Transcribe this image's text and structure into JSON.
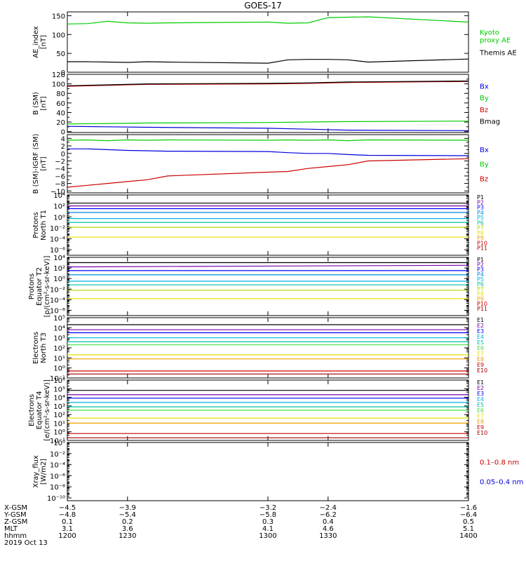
{
  "title": "GOES-17",
  "colors": {
    "black": "#000000",
    "green": "#00cc00",
    "blue": "#0000dd",
    "red": "#cc0000",
    "purple": "#7700aa",
    "darkblue": "#0000ff",
    "cyan": "#00b0e0",
    "teal": "#00c0a0",
    "lightgreen": "#40e040",
    "yellowgreen": "#b0d800",
    "yellow": "#e8e000",
    "orange": "#f0a000",
    "darkred": "#a00000"
  },
  "chart_data": [
    {
      "type": "line",
      "ylabel": "AE_index\n[nT]",
      "ylim": [
        0,
        160
      ],
      "yticks": [
        "0",
        "50",
        "100",
        "150"
      ],
      "ytick_values": [
        0,
        50,
        100,
        150
      ],
      "scale": "linear",
      "x": [
        1200,
        1210,
        1220,
        1230,
        1240,
        1250,
        1300,
        1310,
        1320,
        1330,
        1340,
        1350,
        1400
      ],
      "series": [
        {
          "name": "Kyoto\nproxy AE",
          "color": "#00cc00",
          "values": [
            128,
            129,
            135,
            131,
            130,
            131,
            133,
            130,
            131,
            145,
            146,
            147,
            133
          ]
        },
        {
          "name": "Themis AE",
          "color": "#000000",
          "values": [
            28,
            28,
            27,
            26,
            28,
            27,
            24,
            33,
            34,
            34,
            33,
            27,
            35
          ]
        }
      ]
    },
    {
      "type": "line",
      "ylabel": "B (SM)\n[nT]",
      "ylim": [
        -2,
        120
      ],
      "yticks": [
        "0",
        "20",
        "40",
        "60",
        "80",
        "100",
        "120"
      ],
      "ytick_values": [
        0,
        20,
        40,
        60,
        80,
        100,
        120
      ],
      "minor_yticks": [
        10,
        30,
        50,
        70,
        90,
        110
      ],
      "scale": "linear",
      "x": [
        1200,
        1220,
        1240,
        1300,
        1320,
        1340,
        1400
      ],
      "series": [
        {
          "name": "Bx",
          "color": "#0000dd",
          "values": [
            11,
            10,
            9,
            7,
            5,
            3,
            2
          ]
        },
        {
          "name": "By",
          "color": "#00cc00",
          "values": [
            16,
            17,
            18,
            19,
            20,
            21,
            22
          ]
        },
        {
          "name": "Bz",
          "color": "#cc0000",
          "values": [
            95,
            97,
            99,
            100,
            101,
            103,
            105
          ]
        },
        {
          "name": "Bmag",
          "color": "#000000",
          "values": [
            96,
            98,
            100,
            101,
            102,
            104,
            106
          ]
        }
      ]
    },
    {
      "type": "line",
      "ylabel": "B (SM)-IGRF (SM)\n[nT]",
      "ylim": [
        -10.5,
        5
      ],
      "yticks": [
        "4",
        "2",
        "0",
        "−2",
        "−4",
        "−6",
        "−8",
        "−10"
      ],
      "ytick_values": [
        4,
        2,
        0,
        -2,
        -4,
        -6,
        -8,
        -10
      ],
      "minor_yticks": [
        3,
        1,
        -1,
        -3,
        -5,
        -7,
        -9
      ],
      "scale": "linear",
      "x": [
        1200,
        1210,
        1220,
        1230,
        1240,
        1250,
        1300,
        1310,
        1320,
        1330,
        1340,
        1350,
        1400
      ],
      "series": [
        {
          "name": "Bx",
          "color": "#0000dd",
          "values": [
            1.2,
            1.2,
            1.0,
            0.8,
            0.7,
            0.6,
            0.5,
            0.2,
            0,
            0,
            -0.3,
            -0.5,
            -0.6
          ]
        },
        {
          "name": "By",
          "color": "#00cc00",
          "values": [
            3.5,
            3.6,
            3.4,
            3.6,
            3.5,
            3.6,
            3.5,
            3.6,
            3.5,
            3.6,
            3.4,
            3.6,
            3.5
          ]
        },
        {
          "name": "Bz",
          "color": "#cc0000",
          "values": [
            -9,
            -8.5,
            -8,
            -7.5,
            -7,
            -6,
            -5,
            -4.8,
            -4,
            -3.5,
            -3,
            -2,
            -1.4
          ]
        }
      ]
    },
    {
      "type": "line",
      "ylabel": "Protons\nNorth T1",
      "ylim": [
        -7,
        4
      ],
      "yticks": [
        "10⁴",
        "10²",
        "10⁰",
        "10⁻²",
        "10⁻⁴",
        "10⁻⁶"
      ],
      "ytick_values": [
        4,
        2,
        0,
        -2,
        -4,
        -6
      ],
      "scale": "log",
      "x": [
        1200,
        1400
      ],
      "series": [
        {
          "name": "P1",
          "color": "#000000",
          "values": [
            2.5,
            2.5
          ]
        },
        {
          "name": "P2",
          "color": "#7700aa",
          "values": [
            2,
            2
          ]
        },
        {
          "name": "P3",
          "color": "#0000ff",
          "values": [
            1.5,
            1.5
          ]
        },
        {
          "name": "P4",
          "color": "#0088dd",
          "values": [
            0.8,
            0.8
          ]
        },
        {
          "name": "P5",
          "color": "#00b0e0",
          "values": [
            -0.3,
            -0.3
          ]
        },
        {
          "name": "P6",
          "color": "#00c0a0",
          "values": [
            -1,
            -1
          ]
        },
        {
          "name": "P7",
          "color": "#b0d800",
          "values": [
            -1.9,
            -1.9
          ]
        },
        {
          "name": "P8",
          "color": "#e8e000",
          "values": [
            -3.7,
            -3.7
          ]
        },
        {
          "name": "P9",
          "color": "#f0a000",
          "values": [
            null,
            null
          ]
        },
        {
          "name": "P10",
          "color": "#cc0000",
          "values": [
            null,
            null
          ]
        },
        {
          "name": "P11",
          "color": "#a00000",
          "values": [
            null,
            null
          ]
        }
      ]
    },
    {
      "type": "line",
      "ylabel": "Protons\nEquator T2\n[p/(cm²-s-sr-keV)]",
      "ylim": [
        -7,
        4
      ],
      "yticks": [
        "10⁴",
        "10²",
        "10⁰",
        "10⁻²",
        "10⁻⁴",
        "10⁻⁶"
      ],
      "ytick_values": [
        4,
        2,
        0,
        -2,
        -4,
        -6
      ],
      "scale": "log",
      "x": [
        1200,
        1400
      ],
      "series": [
        {
          "name": "P1",
          "color": "#000000",
          "values": [
            3,
            3
          ]
        },
        {
          "name": "P2",
          "color": "#7700aa",
          "values": [
            2.2,
            2.5
          ]
        },
        {
          "name": "P3",
          "color": "#0000ff",
          "values": [
            1.5,
            1.5
          ]
        },
        {
          "name": "P4",
          "color": "#0088dd",
          "values": [
            0.7,
            0.7
          ]
        },
        {
          "name": "P5",
          "color": "#00b0e0",
          "values": [
            -0.5,
            -0.5
          ]
        },
        {
          "name": "P6",
          "color": "#00c0a0",
          "values": [
            -1.2,
            -1.2
          ]
        },
        {
          "name": "P7",
          "color": "#b0d800",
          "values": [
            -2.2,
            -2.2
          ]
        },
        {
          "name": "P8",
          "color": "#e8e000",
          "values": [
            -3.8,
            -3.8
          ]
        },
        {
          "name": "P9",
          "color": "#f0a000",
          "values": [
            null,
            null
          ]
        },
        {
          "name": "P10",
          "color": "#cc0000",
          "values": [
            null,
            null
          ]
        },
        {
          "name": "P11",
          "color": "#a00000",
          "values": [
            null,
            null
          ]
        }
      ]
    },
    {
      "type": "line",
      "ylabel": "Electrons\nNorth T3",
      "ylim": [
        -1,
        5
      ],
      "yticks": [
        "10⁵",
        "10⁴",
        "10³",
        "10²",
        "10¹",
        "10⁰",
        "10⁻¹"
      ],
      "ytick_values": [
        5,
        4,
        3,
        2,
        1,
        0,
        -1
      ],
      "scale": "log",
      "x": [
        1200,
        1400
      ],
      "series": [
        {
          "name": "E1",
          "color": "#000000",
          "values": [
            4.3,
            4.3
          ]
        },
        {
          "name": "E2",
          "color": "#7700aa",
          "values": [
            3.8,
            3.8
          ]
        },
        {
          "name": "E3",
          "color": "#0000ff",
          "values": [
            3.5,
            3.5
          ]
        },
        {
          "name": "E4",
          "color": "#00b0e0",
          "values": [
            3.0,
            3.0
          ]
        },
        {
          "name": "E5",
          "color": "#00c0a0",
          "values": [
            2.6,
            2.6
          ]
        },
        {
          "name": "E6",
          "color": "#40e040",
          "values": [
            2.3,
            2.3
          ]
        },
        {
          "name": "E7",
          "color": "#e8e000",
          "values": [
            1.3,
            1.3
          ]
        },
        {
          "name": "E8",
          "color": "#f0a000",
          "values": [
            0.9,
            0.9
          ]
        },
        {
          "name": "E9",
          "color": "#cc0000",
          "values": [
            -0.3,
            -0.3
          ]
        },
        {
          "name": "E10",
          "color": "#a00000",
          "values": [
            -0.6,
            -0.6
          ]
        }
      ]
    },
    {
      "type": "line",
      "ylabel": "Electrons\nEquator T4\n[e/(cm²-s-sr-keV)]",
      "ylim": [
        -1,
        6
      ],
      "yticks": [
        "10⁶",
        "10⁵",
        "10⁴",
        "10³",
        "10²",
        "10¹",
        "10⁰",
        "10⁻¹"
      ],
      "ytick_values": [
        6,
        5,
        4,
        3,
        2,
        1,
        0,
        -1
      ],
      "scale": "log",
      "x": [
        1200,
        1400
      ],
      "series": [
        {
          "name": "E1",
          "color": "#000000",
          "values": [
            4.8,
            4.8
          ]
        },
        {
          "name": "E2",
          "color": "#7700aa",
          "values": [
            4.3,
            4.3
          ]
        },
        {
          "name": "E3",
          "color": "#0000ff",
          "values": [
            3.9,
            3.9
          ]
        },
        {
          "name": "E4",
          "color": "#00b0e0",
          "values": [
            3.4,
            3.4
          ]
        },
        {
          "name": "E5",
          "color": "#00c0a0",
          "values": [
            2.9,
            2.9
          ]
        },
        {
          "name": "E6",
          "color": "#40e040",
          "values": [
            2.5,
            2.5
          ]
        },
        {
          "name": "E7",
          "color": "#e8e000",
          "values": [
            1.6,
            1.6
          ]
        },
        {
          "name": "E8",
          "color": "#f0a000",
          "values": [
            1.0,
            1.0
          ]
        },
        {
          "name": "E9",
          "color": "#cc0000",
          "values": [
            -0.2,
            -0.2
          ]
        },
        {
          "name": "E10",
          "color": "#a00000",
          "values": [
            -0.7,
            -0.7
          ]
        }
      ]
    },
    {
      "type": "line",
      "ylabel": "Xray_flux\n[W/m2]",
      "ylim": [
        -10.5,
        0
      ],
      "yticks": [
        "10⁰",
        "10⁻²",
        "10⁻⁴",
        "10⁻⁶",
        "10⁻⁸",
        "10⁻¹⁰"
      ],
      "ytick_values": [
        0,
        -2,
        -4,
        -6,
        -8,
        -10
      ],
      "scale": "log",
      "x": [
        1200,
        1400
      ],
      "series": [
        {
          "name": "0.1–0.8 nm",
          "color": "#cc0000",
          "values": [
            null,
            null
          ]
        },
        {
          "name": "0.05–0.4 nm",
          "color": "#0000dd",
          "values": [
            null,
            null
          ]
        }
      ]
    }
  ],
  "xaxis": {
    "rows": [
      {
        "label": "X-GSM",
        "values": [
          "−4.5",
          "−3.9",
          "−3.2",
          "−2.4",
          "−1.6"
        ]
      },
      {
        "label": "Y-GSM",
        "values": [
          "−4.8",
          "−5.4",
          "−5.8",
          "−6.2",
          "−6.4"
        ]
      },
      {
        "label": "Z-GSM",
        "values": [
          "0.1",
          "0.2",
          "0.3",
          "0.4",
          "0.5"
        ]
      },
      {
        "label": "MLT",
        "values": [
          "3.1",
          "3.6",
          "4.1",
          "4.6",
          "5.1"
        ]
      },
      {
        "label": "hhmm",
        "values": [
          "1200",
          "1230",
          "1300",
          "1330",
          "1400"
        ]
      }
    ],
    "date": "2019 Oct 13"
  }
}
